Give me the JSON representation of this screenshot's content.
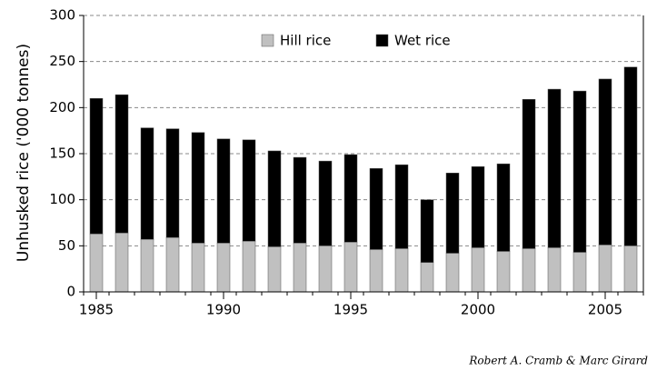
{
  "chart_data": {
    "type": "stacked-bar",
    "y_label": "Unhusked rice ('000 tonnes)",
    "credit": "Robert A. Cramb & Marc Girard",
    "x": [
      1985,
      1986,
      1987,
      1988,
      1989,
      1990,
      1991,
      1992,
      1993,
      1994,
      1995,
      1996,
      1997,
      1998,
      1999,
      2000,
      2001,
      2002,
      2003,
      2004,
      2005,
      2006
    ],
    "xlim": [
      1984.5,
      2006.5
    ],
    "xticks": [
      1985,
      1990,
      1995,
      2000,
      2005
    ],
    "ylim": [
      0,
      300
    ],
    "yticks": [
      0,
      50,
      100,
      150,
      200,
      250,
      300
    ],
    "grid": true,
    "legend": "top",
    "series": [
      {
        "name": "Hill rice",
        "color": "#c0c0c0",
        "values": [
          63,
          64,
          57,
          59,
          53,
          53,
          55,
          49,
          53,
          50,
          54,
          46,
          47,
          32,
          42,
          48,
          44,
          47,
          48,
          43,
          51,
          50
        ]
      },
      {
        "name": "Wet rice",
        "color": "#000000",
        "values": [
          147,
          150,
          121,
          118,
          120,
          113,
          110,
          104,
          93,
          92,
          95,
          88,
          91,
          68,
          87,
          88,
          95,
          162,
          172,
          175,
          180,
          194
        ]
      }
    ]
  }
}
